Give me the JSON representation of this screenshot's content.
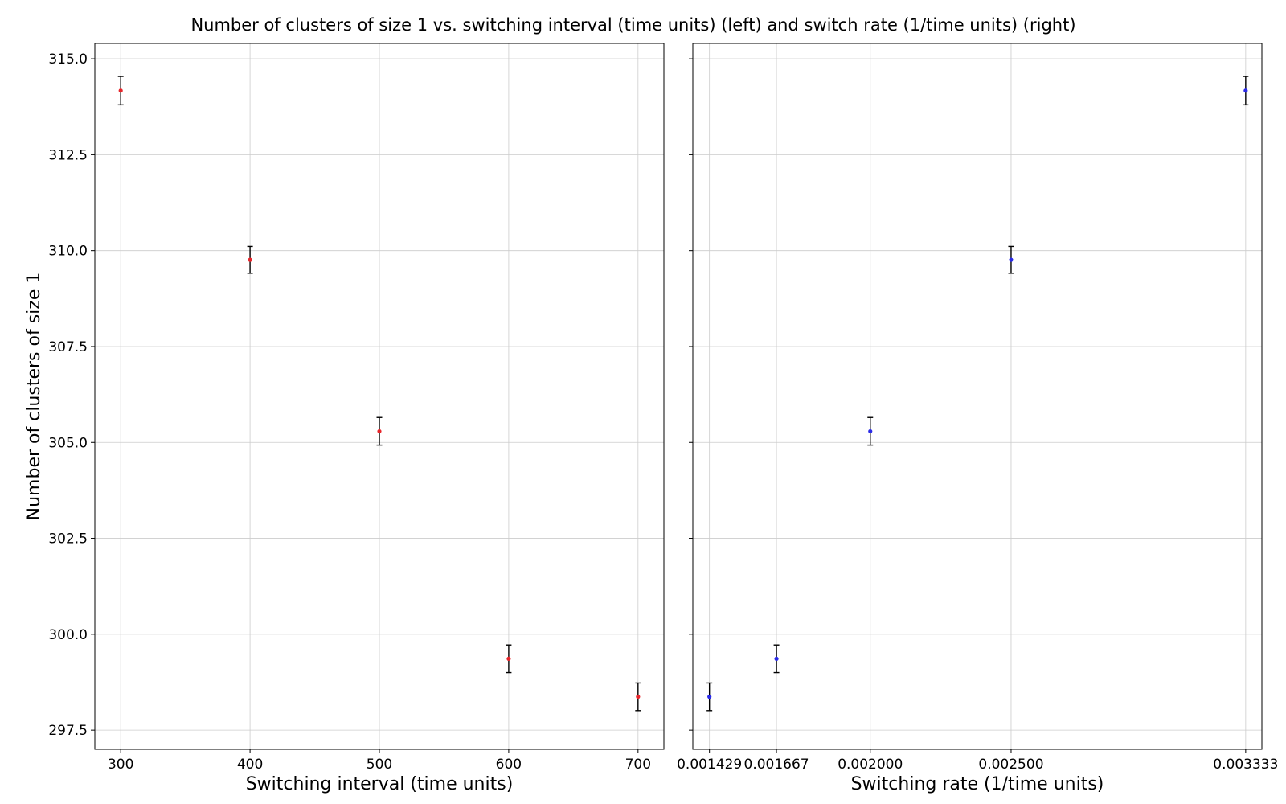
{
  "figure": {
    "title": "Number of clusters of size 1 vs. switching interval (time units) (left) and switch rate (1/time units) (right)"
  },
  "chart_data": [
    {
      "type": "scatter",
      "title": "",
      "xlabel": "Switching interval (time units)",
      "ylabel": "Number of clusters of size 1",
      "xlim": [
        280,
        720
      ],
      "ylim": [
        297.0,
        315.4
      ],
      "grid": true,
      "x_ticks": [
        300,
        400,
        500,
        600,
        700
      ],
      "x_tick_labels": [
        "300",
        "400",
        "500",
        "600",
        "700"
      ],
      "y_ticks": [
        297.5,
        300.0,
        302.5,
        305.0,
        307.5,
        310.0,
        312.5,
        315.0
      ],
      "y_tick_labels": [
        "297.5",
        "300.0",
        "302.5",
        "305.0",
        "307.5",
        "310.0",
        "312.5",
        "315.0"
      ],
      "marker_color": "#e8262b",
      "errorbar_color": "#000000",
      "x": [
        300,
        400,
        500,
        600,
        700
      ],
      "y": [
        314.17,
        309.76,
        305.29,
        299.36,
        298.37
      ],
      "yerr": [
        0.37,
        0.35,
        0.36,
        0.36,
        0.36
      ]
    },
    {
      "type": "scatter",
      "title": "",
      "xlabel": "Switching rate (1/time units)",
      "ylabel": "",
      "xlim": [
        0.00137,
        0.0033905
      ],
      "ylim": [
        297.0,
        315.4
      ],
      "grid": true,
      "sharey": true,
      "x_ticks": [
        0.001429,
        0.001667,
        0.002,
        0.0025,
        0.003333
      ],
      "x_tick_labels": [
        "0.001429",
        "0.001667",
        "0.002000",
        "0.002500",
        "0.003333"
      ],
      "y_ticks": [
        297.5,
        300.0,
        302.5,
        305.0,
        307.5,
        310.0,
        312.5,
        315.0
      ],
      "marker_color": "#2b2be8",
      "errorbar_color": "#000000",
      "x": [
        0.001429,
        0.001667,
        0.002,
        0.0025,
        0.003333
      ],
      "y": [
        298.37,
        299.36,
        305.29,
        309.76,
        314.17
      ],
      "yerr": [
        0.36,
        0.36,
        0.36,
        0.35,
        0.37
      ]
    }
  ]
}
